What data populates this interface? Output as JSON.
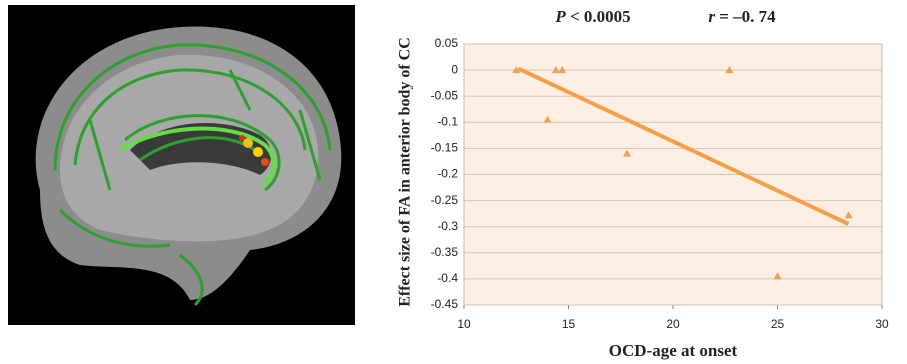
{
  "chart_data": {
    "type": "scatter",
    "annotations": [
      {
        "italic": "P",
        "text": " < 0.0005"
      },
      {
        "italic": "r",
        "text": " = –0. 74"
      }
    ],
    "xlabel": "OCD-age at onset",
    "ylabel": "Effect size of FA in anterior body of CC",
    "x": [
      12.5,
      14.4,
      14.7,
      22.7,
      14,
      17.8,
      28.4,
      25
    ],
    "values": [
      0,
      0,
      0,
      0,
      -0.095,
      -0.16,
      -0.278,
      -0.395
    ],
    "color": "#f0a050",
    "trend_line": {
      "x": [
        12.6,
        28.4
      ],
      "values": [
        0.003,
        -0.295
      ],
      "color": "#f5a048"
    },
    "xlim": [
      10,
      30
    ],
    "xticks": [
      10,
      15,
      20,
      25,
      30
    ],
    "ylim": [
      -0.45,
      0.05
    ],
    "yticks": [
      0.05,
      0,
      -0.05,
      -0.1,
      -0.15,
      -0.2,
      -0.25,
      -0.3,
      -0.35,
      -0.4,
      -0.45
    ],
    "grid": true
  }
}
